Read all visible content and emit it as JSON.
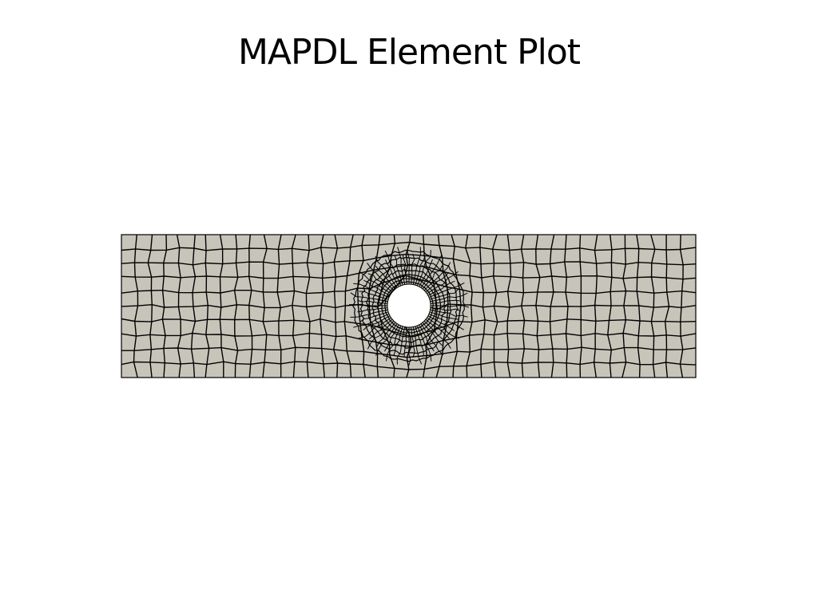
{
  "plot": {
    "title": "MAPDL Element Plot"
  },
  "mesh": {
    "description": "Quadrilateral plate mesh with a central circular hole",
    "element_type": "quad",
    "colors": {
      "fill": "#c7c5ba",
      "edge": "#000000",
      "background": "#ffffff",
      "hole": "#ffffff"
    }
  }
}
